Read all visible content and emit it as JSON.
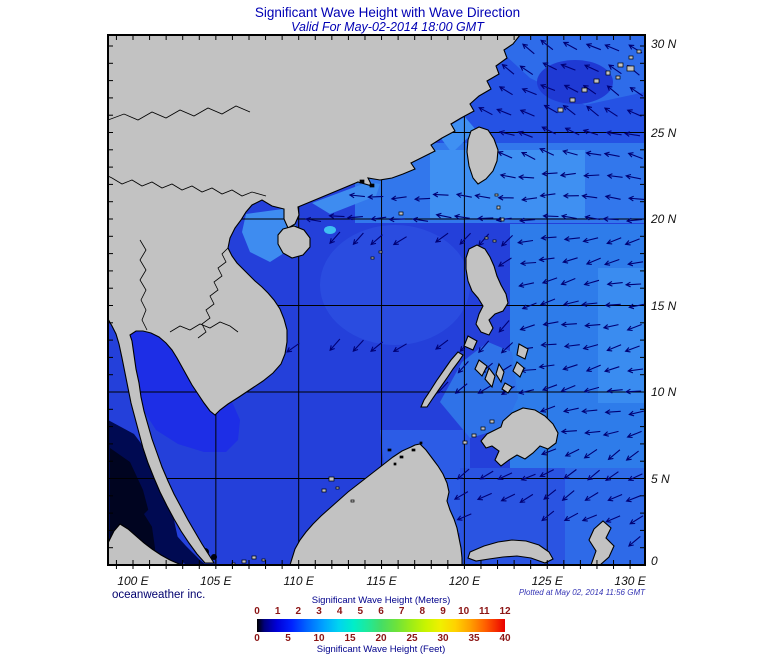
{
  "page": {
    "title": "Significant Wave Height with Wave Direction",
    "subtitle": "Valid For May-02-2014 18:00 GMT"
  },
  "map": {
    "credit": "oceanweather inc.",
    "plotted_at": "Plotted at May 02, 2014 11:56 GMT",
    "lat_labels": [
      "30 N",
      "25 N",
      "20 N",
      "15 N",
      "10 N",
      "5 N",
      "0"
    ],
    "lon_labels": [
      "100 E",
      "105 E",
      "110 E",
      "115 E",
      "120 E",
      "125 E",
      "130 E"
    ]
  },
  "legend": {
    "meters_title": "Significant Wave Height (Meters)",
    "feet_title": "Significant Wave Height (Feet)",
    "meters_ticks": [
      "0",
      "1",
      "2",
      "3",
      "4",
      "5",
      "6",
      "7",
      "8",
      "9",
      "10",
      "11",
      "12"
    ],
    "feet_ticks": [
      "0",
      "5",
      "10",
      "15",
      "20",
      "25",
      "30",
      "35",
      "40"
    ],
    "colorbar_stops": [
      [
        0,
        "#000000"
      ],
      [
        0.03,
        "#00007f"
      ],
      [
        0.08,
        "#0000d9"
      ],
      [
        0.14,
        "#0022ff"
      ],
      [
        0.2,
        "#0064ff"
      ],
      [
        0.27,
        "#00a4ff"
      ],
      [
        0.33,
        "#00d4f0"
      ],
      [
        0.39,
        "#00eec8"
      ],
      [
        0.45,
        "#22e896"
      ],
      [
        0.5,
        "#44dd66"
      ],
      [
        0.56,
        "#6ce23c"
      ],
      [
        0.62,
        "#9cec18"
      ],
      [
        0.68,
        "#c8f400"
      ],
      [
        0.74,
        "#f0f000"
      ],
      [
        0.8,
        "#ffd200"
      ],
      [
        0.86,
        "#ffa000"
      ],
      [
        0.92,
        "#ff6000"
      ],
      [
        0.97,
        "#f32500"
      ],
      [
        1,
        "#e80000"
      ]
    ]
  },
  "colors": {
    "title_blue": "#0000b4",
    "tick_maroon": "#8b1414",
    "land_gray": "#c2c2c2",
    "coast_black": "#000000",
    "ocean_base": "#2440da",
    "ocean_light_band": "#3277ec",
    "ocean_luzon_strait": "#3f90f2",
    "ocean_east_pacific": "#2e7cea",
    "gulf_thailand": "#1d2ee6",
    "andaman_dark": "#000a52",
    "andaman_core": "#000420",
    "arrow_navy": "#000075"
  }
}
